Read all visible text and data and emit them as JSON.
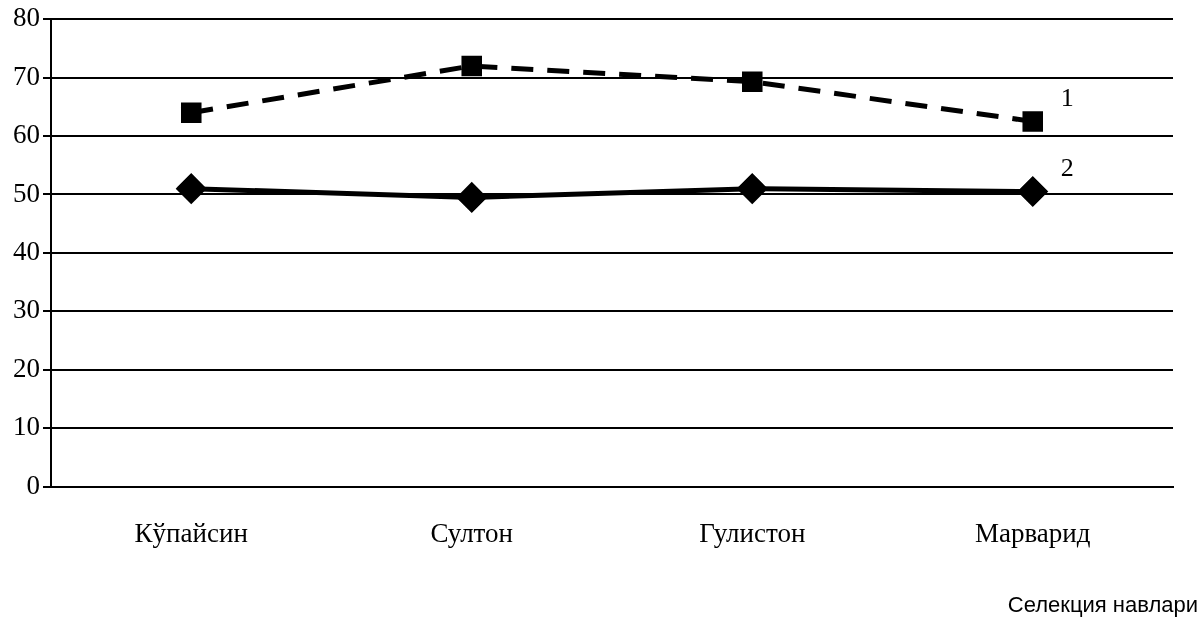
{
  "chart_data": {
    "type": "line",
    "xlabel": "Селекция навлари",
    "categories": [
      "Кўпайсин",
      "Султон",
      "Гулистон",
      "Марварид"
    ],
    "series": [
      {
        "name": "1",
        "color": "#000000",
        "values": [
          64,
          72,
          69.3,
          62.5
        ],
        "marker": "square",
        "line_style": "dashed"
      },
      {
        "name": "2",
        "color": "#000000",
        "values": [
          51,
          49.5,
          51,
          50.5
        ],
        "marker": "diamond",
        "line_style": "solid"
      }
    ],
    "ylim": [
      0,
      80
    ],
    "yticks": [
      0,
      10,
      20,
      30,
      40,
      50,
      60,
      70,
      80
    ],
    "grid": "y",
    "legend": false
  }
}
